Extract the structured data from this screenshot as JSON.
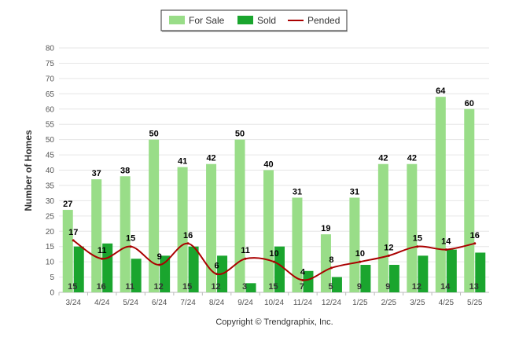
{
  "chart_data": {
    "type": "bar",
    "ylabel": "Number of Homes",
    "xlabel": "",
    "ylim": [
      0,
      80
    ],
    "ytick_step": 5,
    "grid": true,
    "legend_position": "top-center",
    "categories": [
      "3/24",
      "4/24",
      "5/24",
      "6/24",
      "7/24",
      "8/24",
      "9/24",
      "10/24",
      "11/24",
      "12/24",
      "1/25",
      "2/25",
      "3/25",
      "4/25",
      "5/25"
    ],
    "series": [
      {
        "name": "For Sale",
        "kind": "bar",
        "color": "#99dd88",
        "values": [
          27,
          37,
          38,
          50,
          41,
          42,
          50,
          40,
          31,
          19,
          31,
          42,
          42,
          64,
          60
        ]
      },
      {
        "name": "Sold",
        "kind": "bar",
        "color": "#1aa52e",
        "values": [
          15,
          16,
          11,
          12,
          15,
          12,
          3,
          15,
          7,
          5,
          9,
          9,
          12,
          14,
          13
        ]
      },
      {
        "name": "Pended",
        "kind": "line",
        "color": "#aa0000",
        "values": [
          17,
          11,
          15,
          9,
          16,
          6,
          11,
          10,
          4,
          8,
          10,
          12,
          15,
          14,
          16
        ]
      }
    ]
  },
  "footer": {
    "copyright": "Copyright © Trendgraphix, Inc."
  }
}
